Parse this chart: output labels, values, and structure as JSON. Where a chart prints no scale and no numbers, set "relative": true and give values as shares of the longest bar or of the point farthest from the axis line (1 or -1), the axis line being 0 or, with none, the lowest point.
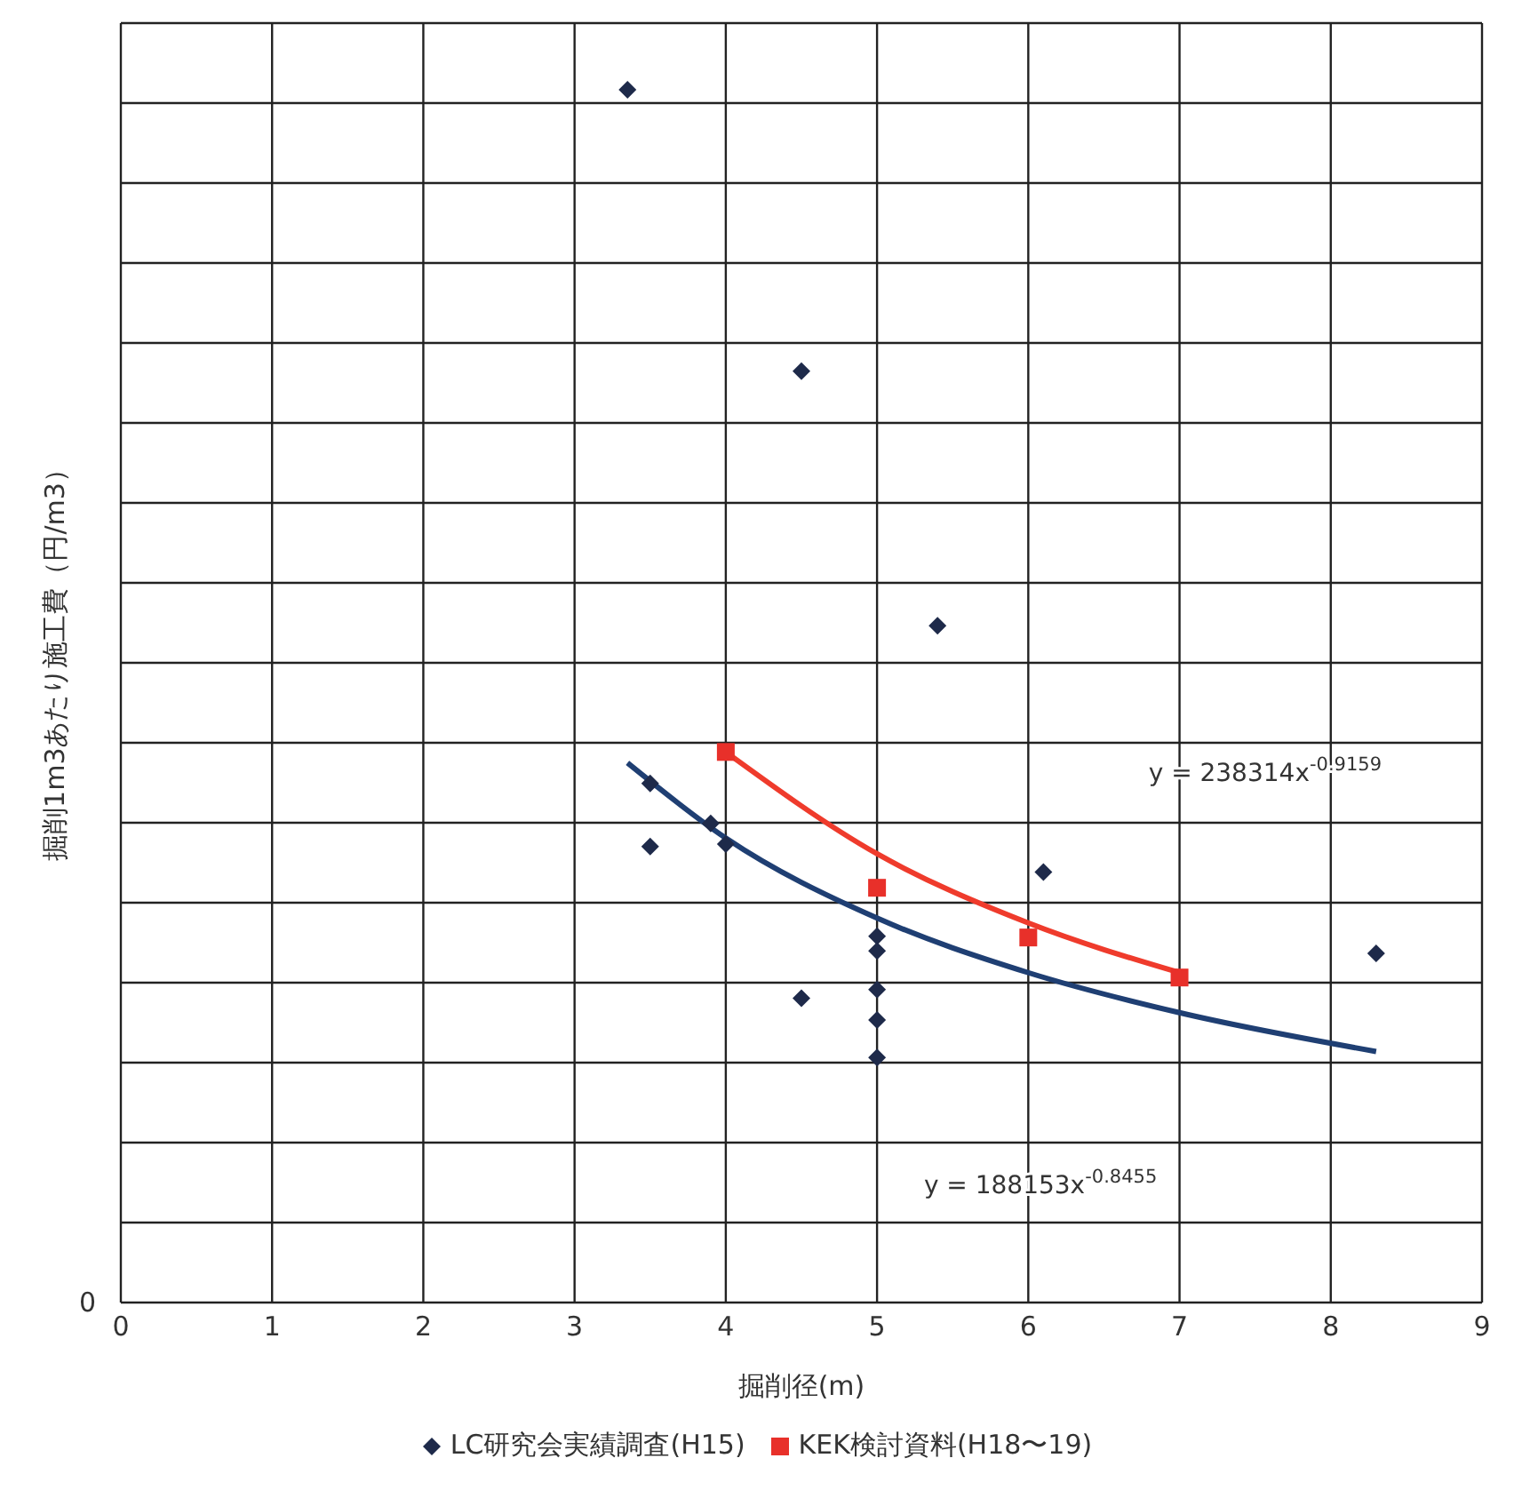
{
  "chart_data": {
    "type": "scatter",
    "relative": true,
    "xlabel": "掘削径(m)",
    "ylabel": "掘削1m3あたり施工費（円/m3）",
    "xlim": [
      0,
      9
    ],
    "xticks": [
      0,
      1,
      2,
      3,
      4,
      5,
      6,
      7,
      8,
      9
    ],
    "grid": true,
    "legend": "bottom",
    "annotations": [
      "0",
      "y = 238314x$^{-0.9159}$",
      "y = 188153x$^{-0.8455}$"
    ],
    "series": [
      {
        "name": "LC研究会実績調査(H15)",
        "marker": "diamond",
        "color": "#1e2a4a",
        "x": [
          3.35,
          4.5,
          5.4,
          3.5,
          3.5,
          3.9,
          4.0,
          6.1,
          8.3,
          4.5,
          5,
          5,
          5,
          5,
          5
        ],
        "values": [
          1,
          0.768,
          0.558,
          0.428,
          0.376,
          0.395,
          0.378,
          0.355,
          0.288,
          0.251,
          0.302,
          0.29,
          0.258,
          0.233,
          0.202
        ]
      },
      {
        "name": "KEK検討資料(H18〜19)",
        "marker": "square",
        "color": "#e8302a",
        "x": [
          4,
          5,
          6,
          7
        ],
        "values": [
          0.454,
          0.342,
          0.301,
          0.268
        ]
      },
      {
        "type": "line",
        "marker": "none",
        "color": "#1f3f73",
        "x": [
          3.35,
          4,
          5,
          6,
          7,
          8.3
        ],
        "values": [
          0.445,
          0.383,
          0.317,
          0.272,
          0.239,
          0.207
        ]
      },
      {
        "type": "line",
        "marker": "none",
        "color": "#ef3b2c",
        "x": [
          4,
          5,
          6,
          7
        ],
        "values": [
          0.454,
          0.37,
          0.313,
          0.272
        ]
      }
    ]
  }
}
